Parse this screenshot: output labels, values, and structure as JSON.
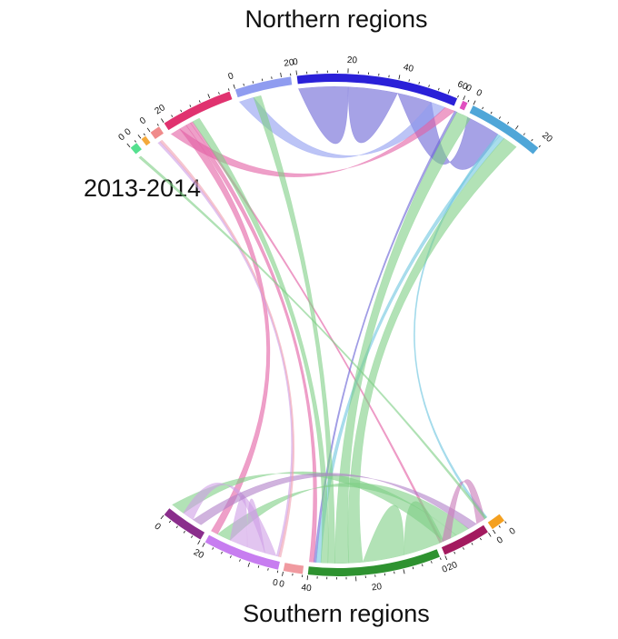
{
  "title_north": "Northern regions",
  "title_south": "Southern regions",
  "period_label": "2013-2014",
  "chart_data": {
    "type": "chord",
    "groups": [
      {
        "id": "N1",
        "side": "north",
        "color": "#55e08f",
        "size": 3
      },
      {
        "id": "N2",
        "side": "north",
        "color": "#f4a93b",
        "size": 2
      },
      {
        "id": "N3",
        "side": "north",
        "color": "#f08a8a",
        "size": 4
      },
      {
        "id": "N4",
        "side": "north",
        "color": "#e0326f",
        "size": 28
      },
      {
        "id": "N5",
        "side": "north",
        "color": "#8f9cf0",
        "size": 22
      },
      {
        "id": "N6",
        "side": "north",
        "color": "#2a20d8",
        "size": 63
      },
      {
        "id": "N7",
        "side": "north",
        "color": "#e050c0",
        "size": 2
      },
      {
        "id": "N8",
        "side": "north",
        "color": "#4fa6d8",
        "size": 30
      },
      {
        "id": "S1",
        "side": "south",
        "color": "#8a2d8c",
        "size": 18
      },
      {
        "id": "S2",
        "side": "south",
        "color": "#c77df0",
        "size": 32
      },
      {
        "id": "S3",
        "side": "south",
        "color": "#f09aa0",
        "size": 8
      },
      {
        "id": "S4",
        "side": "south",
        "color": "#2e9230",
        "size": 55
      },
      {
        "id": "S5",
        "side": "south",
        "color": "#a31a5f",
        "size": 20
      },
      {
        "id": "S6",
        "side": "south",
        "color": "#f4a020",
        "size": 6
      }
    ],
    "flows": [
      {
        "from": "N6",
        "to": "N6",
        "value": 20,
        "color": "#6a64d6"
      },
      {
        "from": "N6",
        "to": "N8",
        "value": 14,
        "color": "#6a64d6"
      },
      {
        "from": "N5",
        "to": "N6",
        "value": 6,
        "color": "#8f9cf0"
      },
      {
        "from": "N4",
        "to": "N6",
        "value": 4,
        "color": "#e35fa4"
      },
      {
        "from": "N4",
        "to": "S2",
        "value": 3,
        "color": "#e35fa4"
      },
      {
        "from": "N4",
        "to": "S4",
        "value": 2,
        "color": "#e35fa4"
      },
      {
        "from": "N4",
        "to": "S5",
        "value": 1,
        "color": "#e35fa4"
      },
      {
        "from": "N6",
        "to": "S4",
        "value": 1,
        "color": "#6a64d6"
      },
      {
        "from": "N8",
        "to": "S6",
        "value": 1,
        "color": "#6fc6e0"
      },
      {
        "from": "N8",
        "to": "S4",
        "value": 2,
        "color": "#6fc6e0"
      },
      {
        "from": "S4",
        "to": "N4",
        "value": 3,
        "color": "#7fcf86"
      },
      {
        "from": "S4",
        "to": "N5",
        "value": 3,
        "color": "#7fcf86"
      },
      {
        "from": "S4",
        "to": "N6",
        "value": 6,
        "color": "#7fcf86"
      },
      {
        "from": "S4",
        "to": "N8",
        "value": 6,
        "color": "#7fcf86"
      },
      {
        "from": "S4",
        "to": "S4",
        "value": 18,
        "color": "#7fcf86"
      },
      {
        "from": "S4",
        "to": "S1",
        "value": 6,
        "color": "#7fcf86"
      },
      {
        "from": "S4",
        "to": "S2",
        "value": 6,
        "color": "#7fcf86"
      },
      {
        "from": "S2",
        "to": "S2",
        "value": 8,
        "color": "#cf9fe6"
      },
      {
        "from": "S2",
        "to": "S1",
        "value": 5,
        "color": "#cf9fe6"
      },
      {
        "from": "S1",
        "to": "S4",
        "value": 4,
        "color": "#b080c8"
      },
      {
        "from": "S5",
        "to": "S4",
        "value": 4,
        "color": "#c878b8"
      },
      {
        "from": "S2",
        "to": "N3",
        "value": 1,
        "color": "#cf9fe6"
      },
      {
        "from": "N3",
        "to": "S2",
        "value": 1,
        "color": "#f0a0b0"
      },
      {
        "from": "N1",
        "to": "S4",
        "value": 1,
        "color": "#7fcf86"
      }
    ],
    "tick_labels_north": [
      {
        "group": "N1",
        "labels": [
          "0",
          "0"
        ]
      },
      {
        "group": "N3",
        "labels": [
          "0"
        ]
      },
      {
        "group": "N4",
        "labels": [
          "20"
        ]
      },
      {
        "group": "N5",
        "labels": [
          "0",
          "20"
        ]
      },
      {
        "group": "N6",
        "labels": [
          "0",
          "20",
          "40",
          "60"
        ]
      },
      {
        "group": "N7",
        "labels": [
          "0"
        ]
      },
      {
        "group": "N8",
        "labels": [
          "0",
          "20"
        ]
      }
    ],
    "tick_labels_south": [
      {
        "group": "S1",
        "labels": [
          "0"
        ]
      },
      {
        "group": "S2",
        "labels": [
          "20",
          "0"
        ]
      },
      {
        "group": "S3",
        "labels": [
          "0"
        ]
      },
      {
        "group": "S4",
        "labels": [
          "40",
          "20",
          "0"
        ]
      },
      {
        "group": "S5",
        "labels": [
          "20"
        ]
      },
      {
        "group": "S6",
        "labels": [
          "0",
          "0"
        ]
      }
    ]
  }
}
